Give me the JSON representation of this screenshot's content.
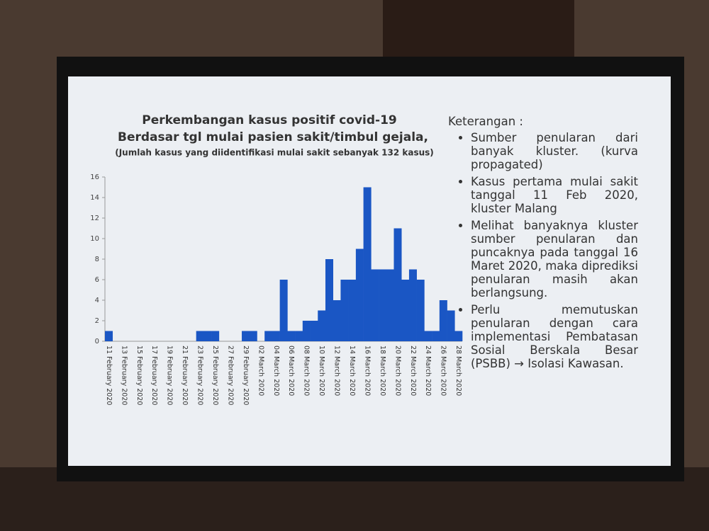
{
  "chart_data": {
    "type": "bar",
    "title": "Perkembangan kasus positif covid-19",
    "subtitle": "Berdasar tgl mulai pasien sakit/timbul gejala,",
    "annotation": "(Jumlah kasus yang diidentifikasi mulai sakit sebanyak 132 kasus)",
    "categories": [
      "11 February 2020",
      null,
      "13 February 2020",
      null,
      "15 February 2020",
      null,
      "17 February 2020",
      null,
      "19 February 2020",
      null,
      "21 February 2020",
      null,
      "23 February 2020",
      null,
      "25 February 2020",
      null,
      "27 February 2020",
      null,
      "29 February 2020",
      null,
      "02 March 2020",
      null,
      "04 March 2020",
      null,
      "06 March 2020",
      null,
      "08 March 2020",
      null,
      "10 March 2020",
      null,
      "12 March 2020",
      null,
      "14 March 2020",
      null,
      "16 March 2020",
      null,
      "18 March 2020",
      null,
      "20 March 2020",
      null,
      "22 March 2020",
      null,
      "24 March 2020",
      null,
      "26 March 2020",
      null,
      "28 March 2020"
    ],
    "values": [
      1,
      0,
      0,
      0,
      0,
      0,
      0,
      0,
      0,
      0,
      0,
      0,
      1,
      1,
      1,
      0,
      0,
      0,
      1,
      1,
      0,
      1,
      1,
      6,
      1,
      1,
      2,
      2,
      3,
      8,
      4,
      6,
      6,
      9,
      15,
      7,
      7,
      7,
      11,
      6,
      7,
      6,
      1,
      1,
      4,
      3,
      1
    ],
    "color": "#1a56c4",
    "ylim": [
      0,
      16
    ],
    "yticks": [
      0,
      2,
      4,
      6,
      8,
      10,
      12,
      14,
      16
    ],
    "grid": false
  },
  "side_panel": {
    "heading": "Keterangan :",
    "bullets": [
      "Sumber penularan dari banyak kluster. (kurva propagated)",
      "Kasus pertama mulai sakit tanggal 11 Feb 2020, kluster Malang",
      "Melihat banyaknya kluster sumber penularan dan puncaknya pada tanggal 16 Maret 2020, maka diprediksi penularan masih akan berlangsung.",
      "Perlu memutuskan penularan dengan cara implementasi Pembatasan Sosial Berskala Besar (PSBB) → Isolasi Kawasan."
    ]
  }
}
